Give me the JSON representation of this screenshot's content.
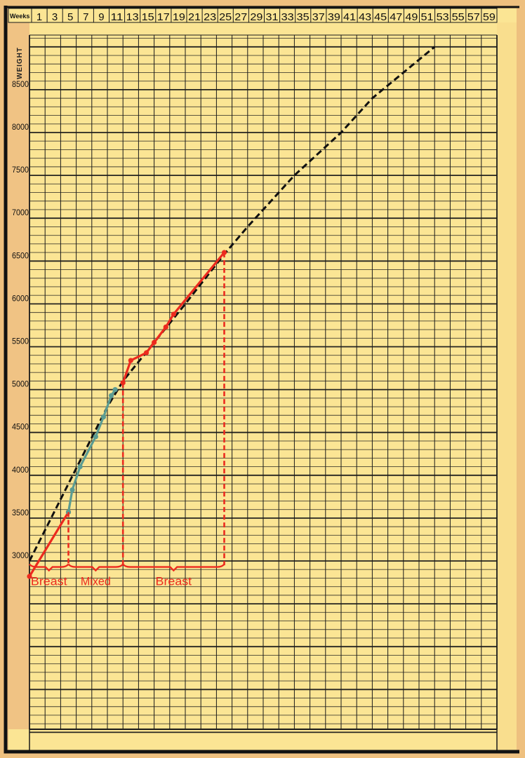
{
  "chart_data": {
    "type": "line",
    "xlabel": "Weeks",
    "ylabel": "Weight",
    "x_tick_labels": [
      "1",
      "3",
      "5",
      "7",
      "9",
      "11",
      "13",
      "15",
      "17",
      "19",
      "21",
      "23",
      "25",
      "27",
      "29",
      "31",
      "33",
      "35",
      "37",
      "39",
      "41",
      "43",
      "45",
      "47",
      "49",
      "51",
      "53",
      "55",
      "57",
      "59"
    ],
    "y_tick_labels": [
      "3000",
      "3500",
      "4000",
      "4500",
      "5000",
      "5500",
      "6000",
      "6500",
      "7000",
      "7500",
      "8000",
      "8500"
    ],
    "xlim": [
      0,
      60
    ],
    "ylim": [
      1000,
      9150
    ],
    "grid": true,
    "colors": {
      "paper": "#fbe594",
      "margin": "#eec07f",
      "grid": "#1a1a1a",
      "red": "#ec2a1e",
      "teal": "#5b9c92",
      "dashed": "#111111"
    },
    "series": [
      {
        "style": "dashed-black",
        "points": [
          [
            0,
            3000
          ],
          [
            5,
            3900
          ],
          [
            10,
            4800
          ],
          [
            12,
            5100
          ],
          [
            16,
            5550
          ],
          [
            20,
            6000
          ],
          [
            25,
            6580
          ],
          [
            28,
            6900
          ],
          [
            34,
            7500
          ],
          [
            40,
            8000
          ],
          [
            44,
            8400
          ],
          [
            52,
            9000
          ]
        ]
      },
      {
        "style": "solid-red",
        "points": [
          [
            0,
            2820
          ],
          [
            5,
            3570
          ]
        ]
      },
      {
        "style": "solid-teal",
        "points": [
          [
            5,
            3570
          ],
          [
            5.5,
            3830
          ],
          [
            6.5,
            4100
          ],
          [
            8.5,
            4450
          ],
          [
            9.5,
            4680
          ],
          [
            10.5,
            4930
          ],
          [
            11,
            5000
          ]
        ]
      },
      {
        "style": "solid-red",
        "points": [
          [
            12,
            5080
          ],
          [
            13,
            5340
          ],
          [
            15,
            5430
          ],
          [
            16,
            5550
          ],
          [
            17.5,
            5730
          ],
          [
            18.5,
            5880
          ],
          [
            25,
            6600
          ]
        ]
      }
    ],
    "feeding_markers": [
      {
        "week": 5,
        "weight": 3570
      },
      {
        "week": 12,
        "weight": 5080
      },
      {
        "week": 25,
        "weight": 6600
      }
    ],
    "annotations": [
      {
        "text": "Breast",
        "from_week": 0,
        "to_week": 5
      },
      {
        "text": "Mixed",
        "from_week": 5,
        "to_week": 12
      },
      {
        "text": "Breast",
        "from_week": 12,
        "to_week": 25
      }
    ]
  }
}
